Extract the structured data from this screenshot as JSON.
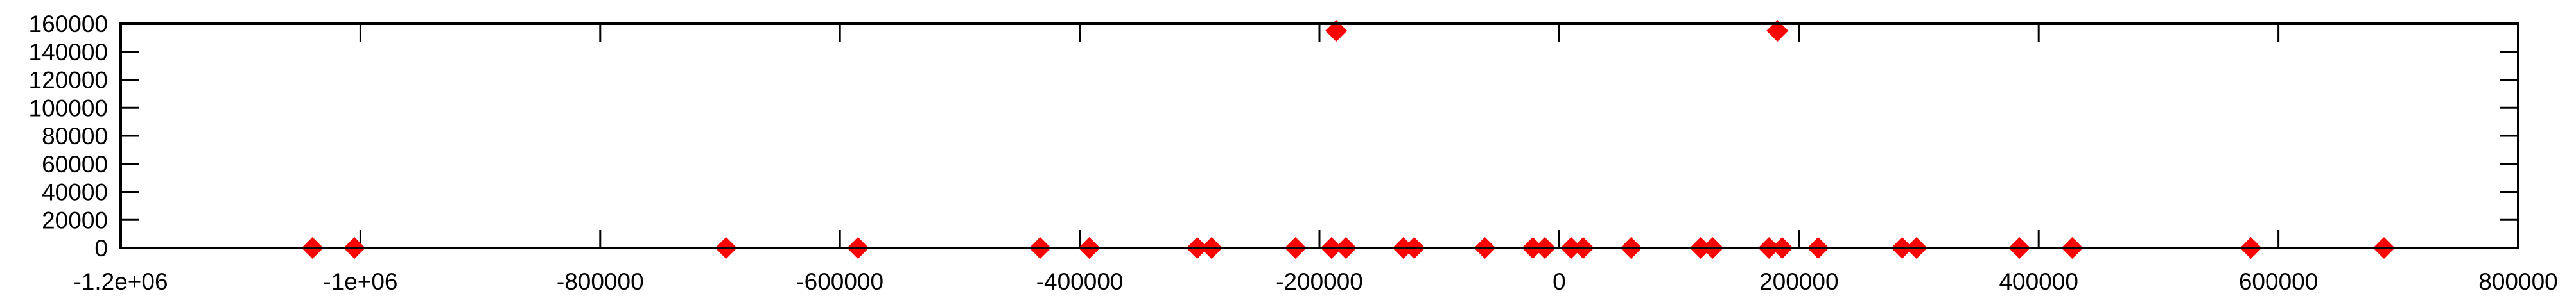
{
  "chart_data": {
    "type": "scatter",
    "title": "",
    "xlabel": "",
    "ylabel": "",
    "xlim": [
      -1200000,
      800000
    ],
    "ylim": [
      0,
      160000
    ],
    "grid": false,
    "legend": "none",
    "x_ticks": [
      -1200000,
      -1000000,
      -800000,
      -600000,
      -400000,
      -200000,
      0,
      200000,
      400000,
      600000,
      800000
    ],
    "x_tick_labels": [
      "-1.2e+06",
      "-1e+06",
      "-800000",
      "-600000",
      "-400000",
      "-200000",
      "0",
      "200000",
      "400000",
      "600000",
      "800000"
    ],
    "y_ticks": [
      0,
      20000,
      40000,
      60000,
      80000,
      100000,
      120000,
      140000,
      160000
    ],
    "y_tick_labels": [
      "0",
      "20000",
      "40000",
      "60000",
      "80000",
      "100000",
      "120000",
      "140000",
      "160000"
    ],
    "marker_color": "#ff0000",
    "marker_shape": "diamond",
    "series": [
      {
        "points": [
          {
            "x": -1040000,
            "y": 0
          },
          {
            "x": -1005000,
            "y": 0
          },
          {
            "x": -695000,
            "y": 0
          },
          {
            "x": -585000,
            "y": 0
          },
          {
            "x": -433000,
            "y": 0
          },
          {
            "x": -392000,
            "y": 0
          },
          {
            "x": -302000,
            "y": 0
          },
          {
            "x": -290000,
            "y": 0
          },
          {
            "x": -220000,
            "y": 0
          },
          {
            "x": -190000,
            "y": 0
          },
          {
            "x": -178000,
            "y": 0
          },
          {
            "x": -130000,
            "y": 0
          },
          {
            "x": -121000,
            "y": 0
          },
          {
            "x": -62000,
            "y": 0
          },
          {
            "x": -22000,
            "y": 0
          },
          {
            "x": -12000,
            "y": 0
          },
          {
            "x": 10000,
            "y": 0
          },
          {
            "x": 20000,
            "y": 0
          },
          {
            "x": 60000,
            "y": 0
          },
          {
            "x": 118000,
            "y": 0
          },
          {
            "x": 128000,
            "y": 0
          },
          {
            "x": 175000,
            "y": 0
          },
          {
            "x": 186000,
            "y": 0
          },
          {
            "x": 216000,
            "y": 0
          },
          {
            "x": 286000,
            "y": 0
          },
          {
            "x": 298000,
            "y": 0
          },
          {
            "x": 384000,
            "y": 0
          },
          {
            "x": 428000,
            "y": 0
          },
          {
            "x": 577000,
            "y": 0
          },
          {
            "x": 688000,
            "y": 0
          },
          {
            "x": -186000,
            "y": 155000
          },
          {
            "x": 182000,
            "y": 155000
          }
        ]
      }
    ]
  }
}
